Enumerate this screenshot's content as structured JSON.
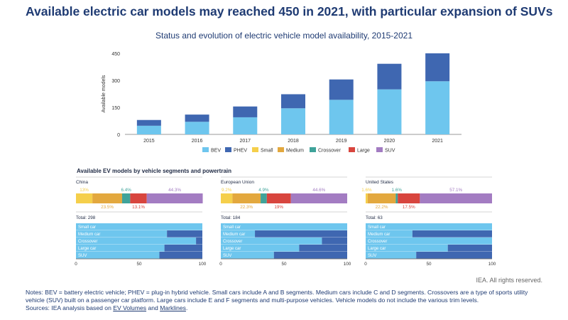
{
  "headline": "Available electric car models may reached 450 in 2021, with particular expansion of SUVs",
  "credit": "IEA. All rights reserved.",
  "notes": {
    "text": "Notes: BEV = battery electric vehicle; PHEV = plug-in hybrid vehicle. Small cars include A and B segments. Medium cars include C and D segments. Crossovers are a type of sports utility vehicle (SUV) built on a passenger car platform. Large cars include E and F segments and multi-purpose vehicles. Vehicle models do not include the various trim levels.",
    "sources_prefix": "Sources: IEA analysis based on ",
    "link1": "EV Volumes",
    "and": " and ",
    "link2": "Marklines",
    "end": "."
  },
  "colors": {
    "BEV": "#6ec6ee",
    "PHEV": "#3f67b1",
    "Small": "#f5cf4b",
    "Medium": "#e3a83e",
    "Crossover": "#3fa39a",
    "Large": "#d8453e",
    "SUV": "#a37cc2"
  },
  "chart_data": [
    {
      "type": "bar",
      "stacked": true,
      "title": "Status and evolution of electric vehicle model availability, 2015-2021",
      "ylabel": "Available models",
      "categories": [
        "2015",
        "2016",
        "2017",
        "2018",
        "2019",
        "2020",
        "2021"
      ],
      "series": [
        {
          "name": "BEV",
          "values": [
            48,
            70,
            95,
            145,
            192,
            250,
            295
          ]
        },
        {
          "name": "PHEV",
          "values": [
            32,
            40,
            60,
            78,
            113,
            142,
            155
          ]
        }
      ],
      "ylim": [
        0,
        450
      ],
      "yticks": [
        "0",
        "150",
        "300",
        "450"
      ],
      "legend": [
        "BEV",
        "PHEV",
        "Small",
        "Medium",
        "Crossover",
        "Large",
        "SUV"
      ],
      "legend_position": "bottom"
    },
    {
      "type": "bar",
      "orientation": "horizontal",
      "stacked": true,
      "title": "Available EV models by vehicle segments and powertrain",
      "panels": [
        {
          "region": "China",
          "segments": [
            {
              "name": "Small",
              "value": 13,
              "label": "13%"
            },
            {
              "name": "Medium",
              "value": 23.5,
              "label": "23.5%"
            },
            {
              "name": "Crossover",
              "value": 6.4,
              "label": "6.4%"
            },
            {
              "name": "Large",
              "value": 13.1,
              "label": "13.1%"
            },
            {
              "name": "SUV",
              "value": 44.3,
              "label": "44.3%"
            }
          ],
          "total": "Total: 298",
          "categories": [
            "Small car",
            "Medium car",
            "Crossover",
            "Large car",
            "SUV"
          ],
          "bev_share": [
            100,
            72,
            95,
            70,
            66
          ]
        },
        {
          "region": "European Union",
          "segments": [
            {
              "name": "Small",
              "value": 9.2,
              "label": "9.2%"
            },
            {
              "name": "Medium",
              "value": 22.3,
              "label": "22.3%"
            },
            {
              "name": "Crossover",
              "value": 4.9,
              "label": "4.9%"
            },
            {
              "name": "Large",
              "value": 19,
              "label": "19%"
            },
            {
              "name": "SUV",
              "value": 44.6,
              "label": "44.6%"
            }
          ],
          "total": "Total: 184",
          "categories": [
            "Small car",
            "Medium car",
            "Crossover",
            "Large car",
            "SUV"
          ],
          "bev_share": [
            100,
            27,
            80,
            62,
            42
          ]
        },
        {
          "region": "United States",
          "segments": [
            {
              "name": "Small",
              "value": 1.6,
              "label": "1.6%"
            },
            {
              "name": "Medium",
              "value": 22.2,
              "label": "22.2%"
            },
            {
              "name": "Crossover",
              "value": 1.6,
              "label": "1.6%"
            },
            {
              "name": "Large",
              "value": 17.5,
              "label": "17.5%"
            },
            {
              "name": "SUV",
              "value": 57.1,
              "label": "57.1%"
            }
          ],
          "total": "Total: 63",
          "categories": [
            "Small car",
            "Medium car",
            "Crossover",
            "Large car",
            "SUV"
          ],
          "bev_share": [
            100,
            37,
            100,
            65,
            40
          ]
        }
      ],
      "xticks": [
        "0",
        "50",
        "100"
      ]
    }
  ]
}
